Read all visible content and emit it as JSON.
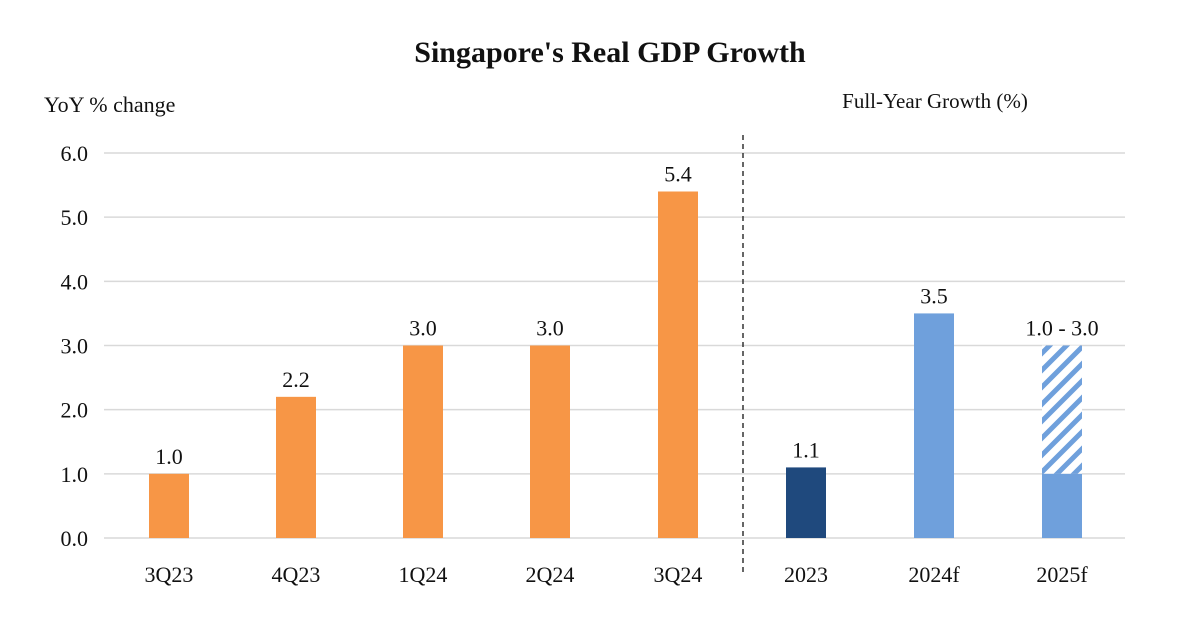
{
  "chart_data": {
    "type": "bar",
    "title": "Singapore's Real GDP Growth",
    "ylabel": "YoY % change",
    "right_panel_label": "Full-Year Growth (%)",
    "ylim": [
      0,
      6
    ],
    "yticks": [
      "0.0",
      "1.0",
      "2.0",
      "3.0",
      "4.0",
      "5.0",
      "6.0"
    ],
    "grid": true,
    "categories": [
      "3Q23",
      "4Q23",
      "1Q24",
      "2Q24",
      "3Q24",
      "2023",
      "2024f",
      "2025f"
    ],
    "series": [
      {
        "values": [
          1.0,
          2.2,
          3.0,
          3.0,
          5.4,
          1.1,
          3.5,
          1.0
        ],
        "range_high": [
          null,
          null,
          null,
          null,
          null,
          null,
          null,
          3.0
        ],
        "labels": [
          "1.0",
          "2.2",
          "3.0",
          "3.0",
          "5.4",
          "1.1",
          "3.5",
          "1.0 - 3.0"
        ],
        "colors": [
          "#F79646",
          "#F79646",
          "#F79646",
          "#F79646",
          "#F79646",
          "#1F497D",
          "#6FA0DC",
          "#6FA0DC"
        ]
      }
    ],
    "annotations": [
      "Dashed divider separates quarterly and full-year panels"
    ]
  }
}
